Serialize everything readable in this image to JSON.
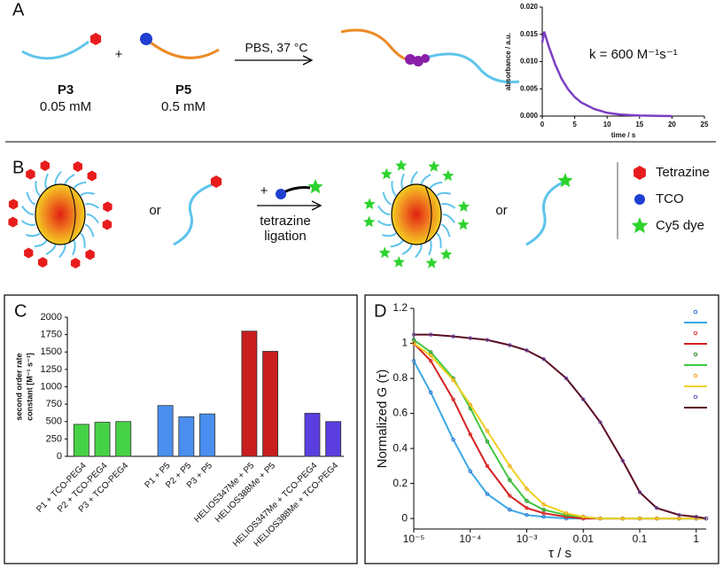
{
  "panels": {
    "a": "A",
    "b": "B",
    "c": "C",
    "d": "D"
  },
  "scheme_a": {
    "p3": "P3",
    "p3_conc": "0.05 mM",
    "plus": "+",
    "p5": "P5",
    "p5_conc": "0.5 mM",
    "condition": "PBS, 37 °C"
  },
  "scheme_b": {
    "or_1": "or",
    "plus": "+",
    "reaction": [
      "tetrazine",
      "ligation"
    ],
    "or_2": "or",
    "legend": [
      "Tetrazine",
      "TCO",
      "Cy5 dye"
    ]
  },
  "chart_data": [
    {
      "type": "line",
      "xlabel": "time / s",
      "ylabel": "absorbance / a.u.",
      "annotation": "k = 600 M⁻¹s⁻¹",
      "x": [
        0,
        0.3,
        1,
        2,
        3,
        4,
        5,
        6,
        8,
        10,
        12,
        15,
        20
      ],
      "values": [
        0.0135,
        0.0155,
        0.0128,
        0.0095,
        0.0068,
        0.0049,
        0.0035,
        0.0025,
        0.0013,
        0.0006,
        0.0003,
        0.0001,
        0
      ],
      "color": "#7b3fc4",
      "xlim": [
        0,
        25
      ],
      "xticks": [
        0,
        5,
        10,
        15,
        20,
        25
      ],
      "ylim": [
        0,
        0.02
      ],
      "yticks": [
        {
          "value": 0,
          "label": "0.000"
        },
        {
          "value": 0.005,
          "label": "0.005"
        },
        {
          "value": 0.01,
          "label": "0.010"
        },
        {
          "value": 0.015,
          "label": "0.015"
        },
        {
          "value": 0.02,
          "label": "0.020"
        }
      ]
    },
    {
      "type": "bar",
      "ylabel": [
        "second order rate",
        "constant [M⁻¹ s⁻¹]"
      ],
      "categories": [
        "P1 + TCO-PEG4",
        "P2 + TCO-PEG4",
        "P3 + TCO-PEG4",
        null,
        "P1 + P5",
        "P2 + P5",
        "P3 + P5",
        null,
        "HELIOS347Me + P5",
        "HELIOS388Me + P5",
        null,
        "HELIOS347Me + TCO-PEG4",
        "HELIOS388Me + TCO-PEG4"
      ],
      "values": [
        460,
        490,
        500,
        null,
        730,
        570,
        610,
        null,
        1800,
        1510,
        null,
        620,
        500
      ],
      "colors": [
        "#46d246",
        "#46d246",
        "#46d246",
        null,
        "#4a8ff0",
        "#4a8ff0",
        "#4a8ff0",
        null,
        "#c81e1e",
        "#c81e1e",
        null,
        "#5a3ee0",
        "#5a3ee0"
      ],
      "ylim": [
        0,
        2000
      ],
      "yticks": [
        0,
        250,
        500,
        750,
        1000,
        1250,
        1500,
        1750,
        2000
      ]
    },
    {
      "type": "scatter",
      "xlabel": "τ / s",
      "ylabel": "Normalized G (τ)",
      "log_x": true,
      "x": [
        1e-05,
        2e-05,
        5e-05,
        0.0001,
        0.0002,
        0.0005,
        0.001,
        0.002,
        0.005,
        0.01,
        0.02,
        0.05,
        0.1,
        0.2,
        0.5,
        1,
        1.5
      ],
      "series": [
        {
          "color": "#2f6fd0",
          "line_color": "#3aa8e8",
          "values": [
            0.9,
            0.72,
            0.45,
            0.27,
            0.14,
            0.05,
            0.02,
            0.01,
            0,
            0,
            0,
            0,
            0,
            0,
            0,
            0,
            0
          ]
        },
        {
          "color": "#e03030",
          "line_color": "#d42020",
          "values": [
            1.0,
            0.9,
            0.68,
            0.48,
            0.3,
            0.13,
            0.06,
            0.03,
            0.01,
            0,
            0,
            0,
            0,
            0,
            0,
            0,
            0
          ]
        },
        {
          "color": "#2a8a2a",
          "line_color": "#40c840",
          "values": [
            1.02,
            0.95,
            0.8,
            0.63,
            0.44,
            0.22,
            0.1,
            0.05,
            0.02,
            0.01,
            0,
            0,
            0,
            0,
            0,
            0,
            0
          ]
        },
        {
          "color": "#f0a020",
          "line_color": "#f0d020",
          "values": [
            1.0,
            0.93,
            0.79,
            0.65,
            0.5,
            0.3,
            0.17,
            0.08,
            0.03,
            0.01,
            0,
            0,
            0,
            0,
            0,
            0,
            0
          ]
        },
        {
          "color": "#6a4fb8",
          "line_color": "#5a0a1e",
          "values": [
            1.05,
            1.05,
            1.04,
            1.03,
            1.02,
            0.99,
            0.96,
            0.91,
            0.8,
            0.68,
            0.55,
            0.33,
            0.15,
            0.06,
            0.02,
            0.01,
            0
          ]
        }
      ],
      "xlim": [
        1e-05,
        1.5
      ],
      "xticks": [
        {
          "value": 1e-05,
          "label": "10⁻⁵"
        },
        {
          "value": 0.0001,
          "label": "10⁻⁴"
        },
        {
          "value": 0.001,
          "label": "10⁻³"
        },
        0.01,
        0.1,
        1
      ],
      "ylim": [
        -0.06,
        1.2
      ],
      "yticks": [
        0,
        0.2,
        0.4,
        0.6,
        0.8,
        1,
        1.2
      ]
    }
  ]
}
